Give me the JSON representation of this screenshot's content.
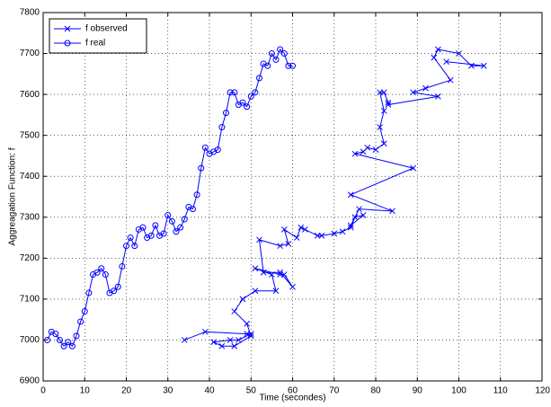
{
  "chart_data": {
    "type": "line",
    "xlabel": "Time (secondes)",
    "ylabel": "Aggreagation Function: f",
    "xlim": [
      0,
      120
    ],
    "xticks": [
      0,
      10,
      20,
      30,
      40,
      50,
      60,
      70,
      80,
      90,
      100,
      110,
      120
    ],
    "ylim": [
      6900,
      7800
    ],
    "yticks": [
      6900,
      7000,
      7100,
      7200,
      7300,
      7400,
      7500,
      7600,
      7700,
      7800
    ],
    "grid": true,
    "legend": "northwest",
    "series": [
      {
        "name": "f observed",
        "color": "#0000ff",
        "marker": "x",
        "x": [
          34,
          39,
          49,
          50,
          47,
          45,
          41,
          43,
          46,
          50,
          49,
          46,
          48,
          51,
          56,
          55,
          51,
          57,
          58,
          60,
          57,
          53,
          52,
          57,
          59,
          58,
          61,
          62,
          63,
          66,
          67,
          70,
          72,
          74,
          75,
          77,
          74,
          76,
          84,
          74,
          89,
          75,
          77,
          78,
          80,
          82,
          81,
          82,
          81,
          82,
          83,
          83,
          95,
          89,
          92,
          98,
          94,
          95,
          100,
          103,
          106,
          97
        ],
        "values": [
          7000,
          7020,
          7015,
          7015,
          7000,
          7000,
          6995,
          6985,
          6985,
          7010,
          7040,
          7070,
          7100,
          7120,
          7120,
          7160,
          7175,
          7160,
          7160,
          7130,
          7165,
          7165,
          7245,
          7230,
          7235,
          7270,
          7250,
          7275,
          7270,
          7255,
          7255,
          7260,
          7265,
          7275,
          7300,
          7305,
          7280,
          7320,
          7315,
          7355,
          7420,
          7455,
          7460,
          7470,
          7465,
          7480,
          7520,
          7560,
          7605,
          7605,
          7580,
          7575,
          7595,
          7605,
          7615,
          7635,
          7690,
          7710,
          7700,
          7670,
          7670,
          7680
        ]
      },
      {
        "name": "f real",
        "color": "#0000ff",
        "marker": "o",
        "x": [
          1,
          2,
          3,
          4,
          5,
          6,
          7,
          8,
          9,
          10,
          11,
          12,
          13,
          14,
          15,
          16,
          17,
          18,
          19,
          20,
          21,
          22,
          23,
          24,
          25,
          26,
          27,
          28,
          29,
          30,
          31,
          32,
          33,
          34,
          35,
          36,
          37,
          38,
          39,
          40,
          41,
          42,
          43,
          44,
          45,
          46,
          47,
          48,
          49,
          50,
          51,
          52,
          53,
          54,
          55,
          56,
          57,
          58,
          59,
          60
        ],
        "values": [
          7000,
          7020,
          7015,
          7000,
          6985,
          6995,
          6985,
          7010,
          7045,
          7070,
          7115,
          7160,
          7165,
          7175,
          7160,
          7115,
          7120,
          7130,
          7180,
          7230,
          7250,
          7230,
          7270,
          7275,
          7250,
          7255,
          7280,
          7255,
          7260,
          7305,
          7290,
          7265,
          7275,
          7295,
          7325,
          7320,
          7355,
          7420,
          7470,
          7455,
          7460,
          7465,
          7520,
          7555,
          7605,
          7605,
          7575,
          7580,
          7570,
          7595,
          7605,
          7640,
          7675,
          7670,
          7700,
          7685,
          7710,
          7700,
          7670,
          7670
        ]
      }
    ]
  }
}
